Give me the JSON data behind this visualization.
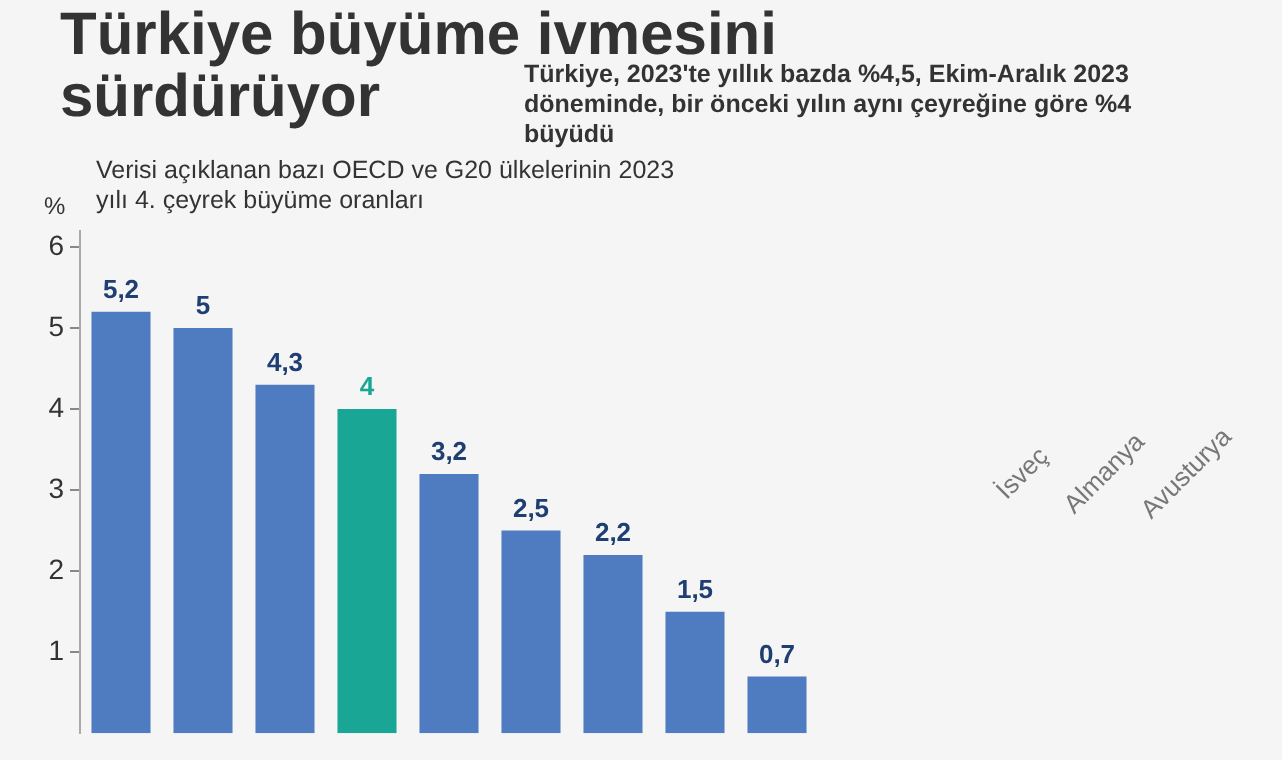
{
  "chart_data": {
    "type": "bar",
    "title": "Türkiye büyüme ivmesini sürdürüyor",
    "subtitle": "Türkiye, 2023'te yıllık bazda %4,5, Ekim-Aralık 2023 döneminde, bir önceki yılın aynı çeyreğine göre %4 büyüdü",
    "annotations": [
      "Verisi açıklanan bazı OECD ve G20 ülkelerinin 2023 yılı 4. çeyrek büyüme oranları"
    ],
    "ylabel": "%",
    "categories": [
      null,
      null,
      null,
      null,
      null,
      null,
      null,
      null,
      null,
      null,
      null,
      "İsveç",
      "Almanya",
      "Avusturya"
    ],
    "values": [
      5.2,
      5,
      4.3,
      4,
      3.2,
      2.5,
      2.2,
      1.5,
      0.7,
      null,
      null,
      null,
      null,
      null
    ],
    "colors": [
      "#4f7cc0",
      "#4f7cc0",
      "#4f7cc0",
      "#1aa694",
      "#4f7cc0",
      "#4f7cc0",
      "#4f7cc0",
      "#4f7cc0",
      "#4f7cc0",
      "#4f7cc0",
      "#4f7cc0",
      "#4f7cc0",
      "#4f7cc0",
      "#4f7cc0"
    ],
    "value_labels": [
      "5,2",
      "5",
      "4,3",
      "4",
      "3,2",
      "2,5",
      "2,2",
      "1,5",
      "0,7",
      null,
      null,
      null,
      null,
      null
    ],
    "ylim": [
      0,
      6.2
    ],
    "yticks": [
      1,
      2,
      3,
      4,
      5,
      6
    ],
    "grid": false,
    "legend": false
  }
}
